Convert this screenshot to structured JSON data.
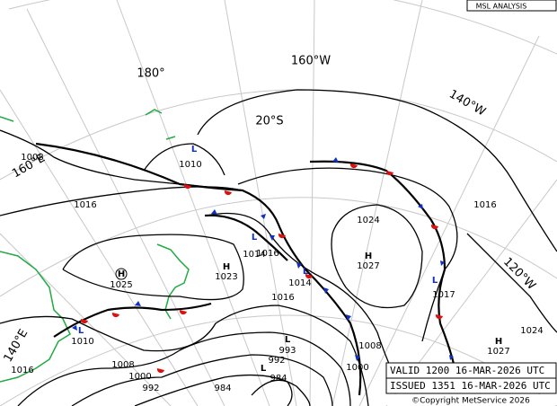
{
  "header": {
    "title": "MSL ANALYSIS"
  },
  "graticule_labels": [
    "180°",
    "160°W",
    "140°W",
    "120°W",
    "160°E",
    "140°E",
    "20°S"
  ],
  "highs": [
    {
      "symbol": "H",
      "pressure": "1025"
    },
    {
      "symbol": "H",
      "pressure": "1023"
    },
    {
      "symbol": "H",
      "pressure": "1027"
    },
    {
      "symbol": "H",
      "pressure": "1027"
    }
  ],
  "lows": [
    {
      "symbol": "L",
      "pressure": "1010"
    },
    {
      "symbol": "L",
      "pressure": "1014"
    },
    {
      "symbol": "L",
      "pressure": "1014"
    },
    {
      "symbol": "L",
      "pressure": "1017"
    },
    {
      "symbol": "L",
      "pressure": "1010"
    },
    {
      "symbol": "L",
      "pressure": "993"
    },
    {
      "symbol": "L",
      "pressure": "984"
    }
  ],
  "isobar_labels": [
    "1008",
    "1016",
    "1016",
    "1016",
    "1024",
    "1016",
    "1024",
    "1008",
    "1000",
    "1016",
    "1008",
    "1000",
    "992",
    "992",
    "984"
  ],
  "footer": {
    "valid": "VALID  1200  16-MAR-2026  UTC",
    "issued": "ISSUED 1351  16-MAR-2026  UTC",
    "copyright": "©Copyright MetService 2026"
  }
}
